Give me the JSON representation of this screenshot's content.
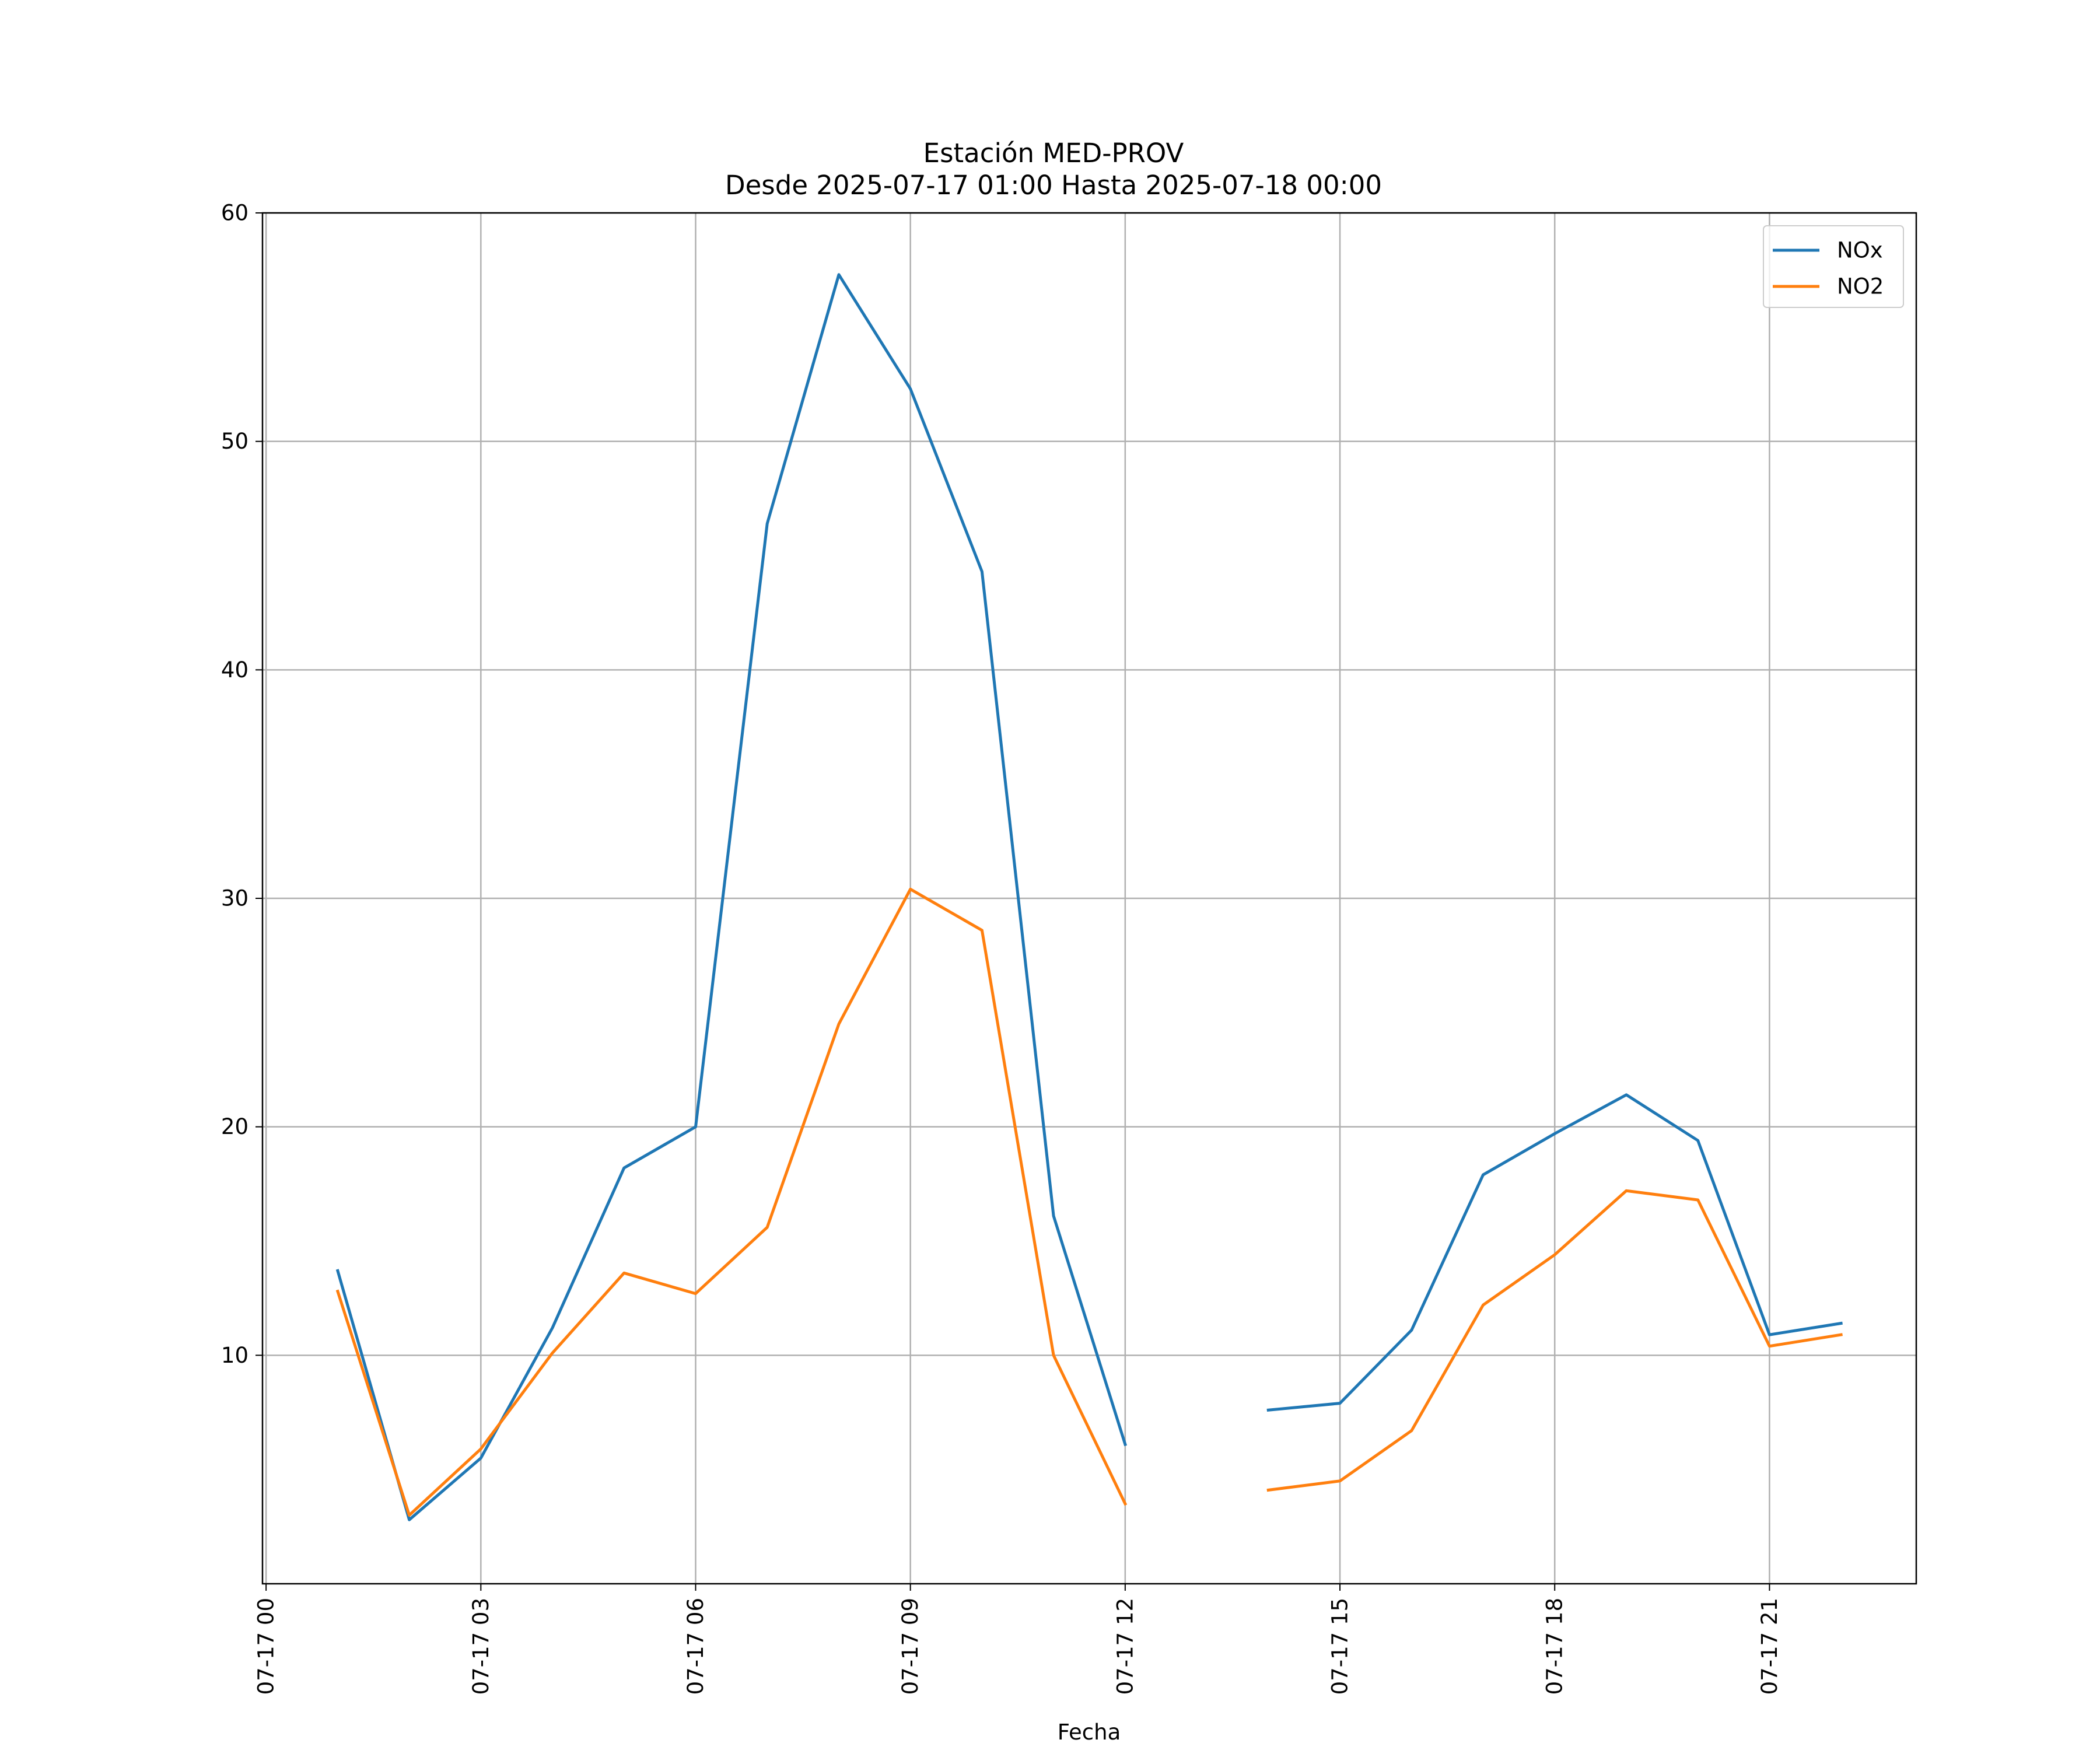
{
  "chart_data": {
    "type": "line",
    "title": "Estación MED-PROV",
    "subtitle": "Desde 2025-07-17 01:00 Hasta 2025-07-18 00:00",
    "xlabel": "Fecha",
    "ylabel": "",
    "x_tick_labels": [
      "07-17 00",
      "07-17 03",
      "07-17 06",
      "07-17 09",
      "07-17 12",
      "07-17 15",
      "07-17 18",
      "07-17 21"
    ],
    "y_tick_labels": [
      "10",
      "20",
      "30",
      "40",
      "50",
      "60"
    ],
    "x_ticks": [
      "2025-07-17 00:00",
      "2025-07-17 03:00",
      "2025-07-17 06:00",
      "2025-07-17 09:00",
      "2025-07-17 12:00",
      "2025-07-17 15:00",
      "2025-07-17 18:00",
      "2025-07-17 21:00"
    ],
    "y_ticks": [
      10,
      20,
      30,
      40,
      50,
      60
    ],
    "xlim": [
      "2025-07-16 23:57",
      "2025-07-17 23:03"
    ],
    "ylim": [
      0,
      60
    ],
    "grid": true,
    "legend_position": "top-right",
    "x": [
      "2025-07-17 01:00",
      "2025-07-17 02:00",
      "2025-07-17 03:00",
      "2025-07-17 04:00",
      "2025-07-17 05:00",
      "2025-07-17 06:00",
      "2025-07-17 07:00",
      "2025-07-17 08:00",
      "2025-07-17 09:00",
      "2025-07-17 10:00",
      "2025-07-17 11:00",
      "2025-07-17 12:00",
      "2025-07-17 13:00",
      "2025-07-17 14:00",
      "2025-07-17 15:00",
      "2025-07-17 16:00",
      "2025-07-17 17:00",
      "2025-07-17 18:00",
      "2025-07-17 19:00",
      "2025-07-17 20:00",
      "2025-07-17 21:00",
      "2025-07-17 22:00"
    ],
    "series": [
      {
        "name": "NOx",
        "color": "#1f77b4",
        "values": [
          13.7,
          2.8,
          5.5,
          11.2,
          18.2,
          20.0,
          46.4,
          57.3,
          52.3,
          44.3,
          16.1,
          6.1,
          null,
          7.6,
          7.9,
          11.1,
          17.9,
          19.7,
          21.4,
          19.4,
          10.9,
          11.4
        ]
      },
      {
        "name": "NO2",
        "color": "#ff7f0e",
        "values": [
          12.8,
          3.0,
          5.9,
          10.1,
          13.6,
          12.7,
          15.6,
          24.5,
          30.4,
          28.6,
          10.0,
          3.5,
          null,
          4.1,
          4.5,
          6.7,
          12.2,
          14.4,
          17.2,
          16.8,
          10.4,
          10.9
        ]
      }
    ]
  }
}
